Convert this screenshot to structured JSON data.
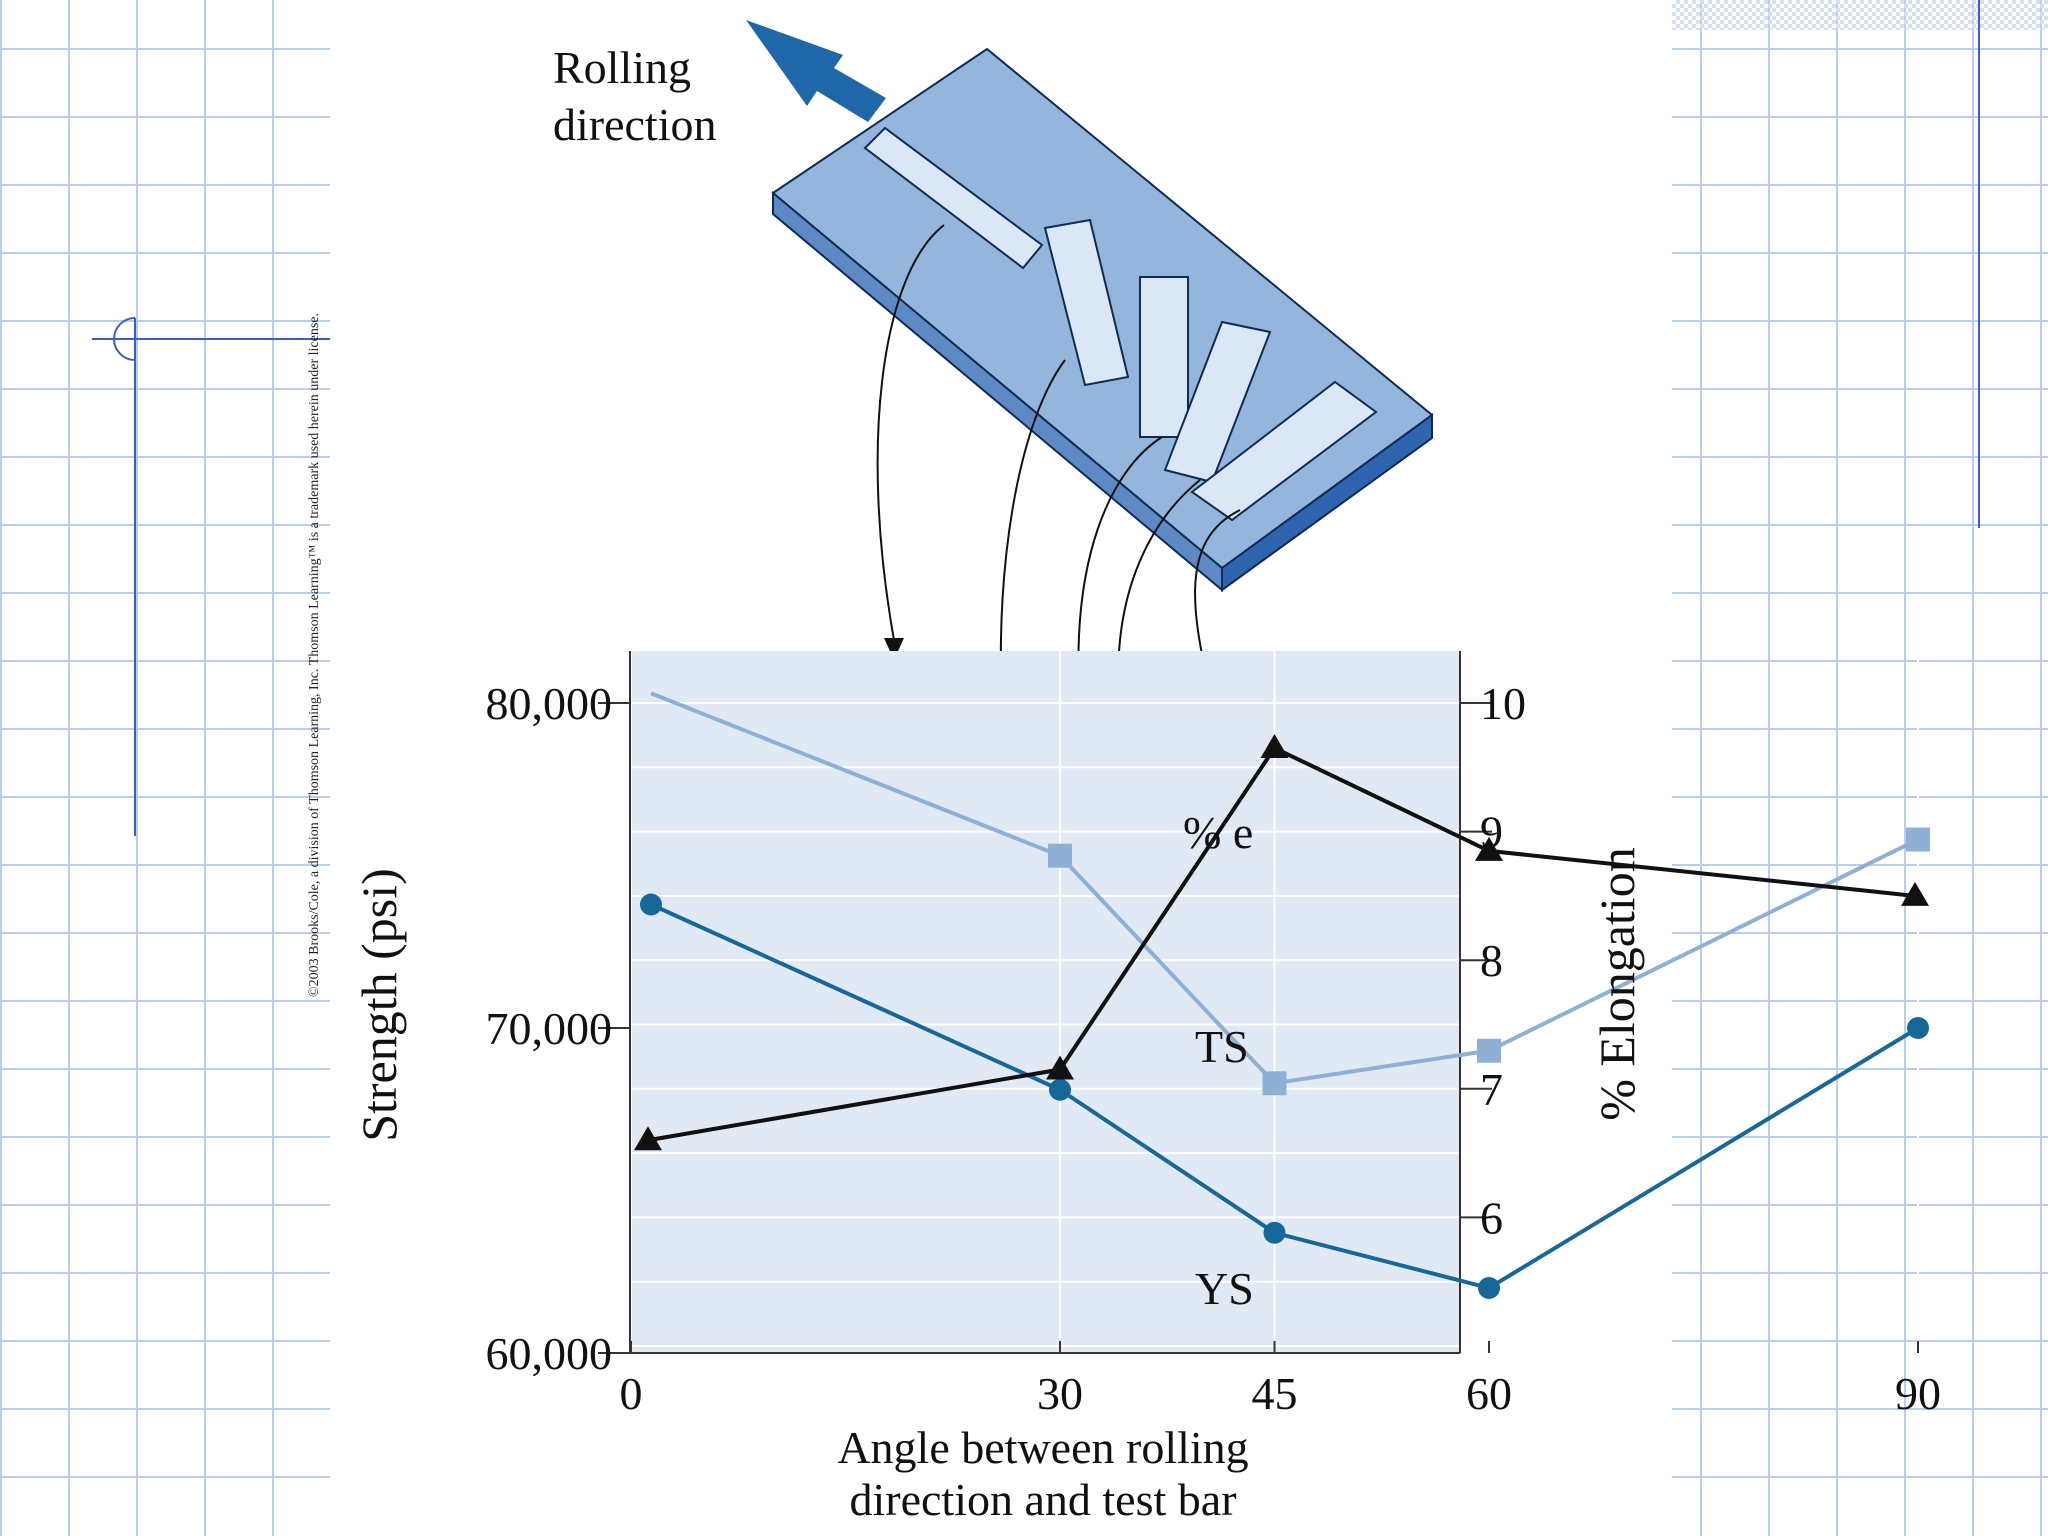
{
  "copyright": "©2003 Brooks/Cole, a division of Thomson Learning, Inc.  Thomson Learning™ is a trademark used herein under license.",
  "rolling_label": [
    "Rolling",
    "direction"
  ],
  "chart_data": {
    "type": "line",
    "x": [
      0,
      30,
      45,
      60,
      90
    ],
    "x_ticks": [
      "0",
      "30",
      "45",
      "60",
      "90"
    ],
    "xlabel": [
      "Angle between rolling",
      "direction and test bar"
    ],
    "ylabel": "Strength (psi)",
    "ylim": [
      60000,
      80000
    ],
    "y_ticks": [
      "60,000",
      "70,000",
      "80,000"
    ],
    "y2label": "% Elongation",
    "y2lim": [
      5,
      10
    ],
    "y2_ticks": [
      "6",
      "7",
      "8",
      "9",
      "10"
    ],
    "grid": true,
    "series": [
      {
        "name": "TS",
        "axis": "left",
        "marker": "square",
        "color": "#8fb0d6",
        "values": [
          80300,
          75300,
          68300,
          69300,
          75800
        ]
      },
      {
        "name": "YS",
        "axis": "left",
        "marker": "circle",
        "color": "#17689a",
        "values": [
          73800,
          68100,
          63700,
          62000,
          70000
        ]
      },
      {
        "name": "% e",
        "axis": "right",
        "marker": "triangle",
        "color": "#111111",
        "values": [
          6.6,
          7.15,
          9.65,
          8.85,
          8.5
        ]
      }
    ]
  }
}
